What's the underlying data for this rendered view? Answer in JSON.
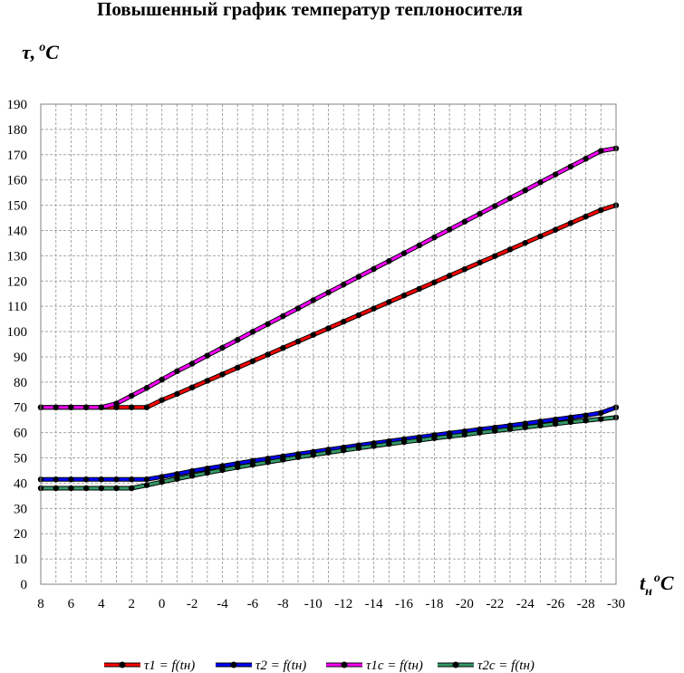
{
  "chart_data": {
    "type": "line",
    "title": "Повышенный график температур теплоносителя",
    "ylabel_main": "τ,",
    "ylabel_sup": "o",
    "ylabel_unit": "C",
    "xlabel_main": "t",
    "xlabel_sub": "н",
    "xlabel_sup": "o",
    "xlabel_unit": "C",
    "ylim": [
      0,
      190
    ],
    "y_ticks": [
      "0",
      "10",
      "20",
      "30",
      "40",
      "50",
      "60",
      "70",
      "80",
      "90",
      "100",
      "110",
      "120",
      "130",
      "140",
      "150",
      "160",
      "170",
      "180",
      "190"
    ],
    "x_tick_labels": [
      "8",
      "6",
      "4",
      "2",
      "0",
      "-2",
      "-4",
      "-6",
      "-8",
      "-10",
      "-12",
      "-14",
      "-16",
      "-18",
      "-20",
      "-22",
      "-24",
      "-26",
      "-28",
      "-30"
    ],
    "x": [
      8,
      7,
      6,
      5,
      4,
      3,
      2,
      1,
      0,
      -1,
      -2,
      -3,
      -4,
      -5,
      -6,
      -7,
      -8,
      -9,
      -10,
      -11,
      -12,
      -13,
      -14,
      -15,
      -16,
      -17,
      -18,
      -19,
      -20,
      -21,
      -22,
      -23,
      -24,
      -25,
      -26,
      -27,
      -28,
      -29,
      -30
    ],
    "xlim": [
      8,
      -30
    ],
    "grid": true,
    "legend_position": "bottom",
    "series": [
      {
        "name": "τ1 = f(tн)",
        "color": "#ff0000",
        "values": [
          70,
          70,
          70,
          70,
          70,
          70,
          70,
          70,
          72.9,
          75.3,
          77.9,
          80.5,
          83.1,
          85.7,
          88.3,
          90.9,
          93.5,
          96.1,
          98.7,
          101.3,
          103.9,
          106.5,
          109.1,
          111.7,
          114.3,
          116.9,
          119.5,
          122.1,
          124.7,
          127.3,
          129.9,
          132.5,
          135.1,
          137.7,
          140.3,
          142.9,
          145.5,
          148.1,
          150.0
        ]
      },
      {
        "name": "τ2 = f(tн)",
        "color": "#0000ff",
        "values": [
          41.5,
          41.5,
          41.5,
          41.5,
          41.5,
          41.5,
          41.5,
          41.5,
          42.5,
          43.6,
          44.8,
          45.8,
          46.8,
          47.8,
          48.8,
          49.7,
          50.6,
          51.5,
          52.4,
          53.3,
          54.1,
          55.0,
          55.8,
          56.6,
          57.4,
          58.2,
          59.0,
          59.8,
          60.5,
          61.3,
          62.0,
          62.8,
          63.6,
          64.4,
          65.2,
          66.0,
          66.8,
          67.8,
          70.0
        ]
      },
      {
        "name": "τ1c = f(tн)",
        "color": "#ff00ff",
        "values": [
          70,
          70,
          70,
          70,
          70,
          71.5,
          74.6,
          77.7,
          81.0,
          84.3,
          87.3,
          90.5,
          93.6,
          96.7,
          99.9,
          103.0,
          106.1,
          109.2,
          112.4,
          115.5,
          118.6,
          121.7,
          124.8,
          127.9,
          131.0,
          134.1,
          137.3,
          140.4,
          143.5,
          146.6,
          149.7,
          152.8,
          155.9,
          159.1,
          162.2,
          165.3,
          168.4,
          171.5,
          172.5
        ]
      },
      {
        "name": "τ2c = f(tн)",
        "color": "#339966",
        "values": [
          38,
          38,
          38,
          38,
          38,
          38,
          38,
          39.2,
          40.5,
          41.7,
          42.9,
          44.1,
          45.2,
          46.3,
          47.3,
          48.3,
          49.3,
          50.3,
          51.2,
          52.1,
          53.0,
          53.9,
          54.7,
          55.5,
          56.3,
          57.0,
          57.8,
          58.5,
          59.2,
          60.0,
          60.7,
          61.4,
          62.1,
          62.8,
          63.5,
          64.2,
          64.8,
          65.4,
          66.0
        ]
      }
    ]
  }
}
